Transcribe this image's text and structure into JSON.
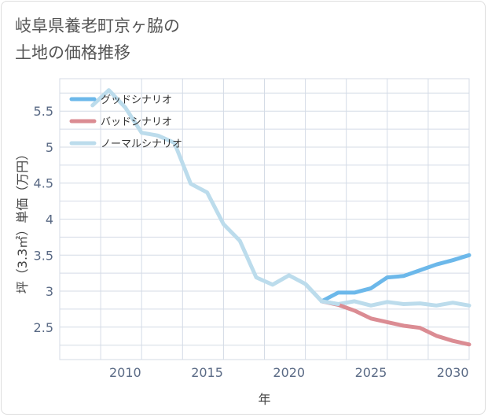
{
  "title": "岐阜県養老町京ヶ脇の\n土地の価格推移",
  "chart_data": {
    "type": "line",
    "xlabel": "年",
    "ylabel": "坪（3.3㎡）単価（万円）",
    "xlim": [
      2006,
      2031
    ],
    "ylim": [
      2.05,
      5.95
    ],
    "xticks": [
      2010,
      2015,
      2020,
      2025,
      2030
    ],
    "xtick_labels": [
      "2010",
      "2015",
      "2020",
      "2025",
      "2030"
    ],
    "yticks": [
      2.5,
      3,
      3.5,
      4,
      4.5,
      5,
      5.5
    ],
    "ytick_labels": [
      "2.5",
      "3",
      "3.5",
      "4",
      "4.5",
      "5",
      "5.5"
    ],
    "grid": true,
    "legend_position": "top-left",
    "series": [
      {
        "name": "グッドシナリオ",
        "color": "#6cb8ea",
        "x": [
          2022,
          2023,
          2024,
          2025,
          2026,
          2027,
          2028,
          2029,
          2030,
          2031
        ],
        "y": [
          2.86,
          2.98,
          2.98,
          3.04,
          3.19,
          3.21,
          3.29,
          3.37,
          3.43,
          3.5
        ]
      },
      {
        "name": "バッドシナリオ",
        "color": "#db8c93",
        "x": [
          2022,
          2023,
          2024,
          2025,
          2026,
          2027,
          2028,
          2029,
          2030,
          2031
        ],
        "y": [
          2.86,
          2.81,
          2.73,
          2.62,
          2.57,
          2.52,
          2.49,
          2.38,
          2.31,
          2.26
        ]
      },
      {
        "name": "ノーマルシナリオ",
        "color": "#bcdcec",
        "x": [
          2008,
          2009,
          2010,
          2011,
          2012,
          2013,
          2014,
          2015,
          2016,
          2017,
          2018,
          2019,
          2020,
          2021,
          2022,
          2023,
          2024,
          2025,
          2026,
          2027,
          2028,
          2029,
          2030,
          2031
        ],
        "y": [
          5.58,
          5.79,
          5.55,
          5.2,
          5.16,
          5.06,
          4.49,
          4.37,
          3.93,
          3.7,
          3.19,
          3.09,
          3.22,
          3.1,
          2.86,
          2.82,
          2.86,
          2.8,
          2.85,
          2.82,
          2.83,
          2.8,
          2.84,
          2.8
        ]
      }
    ]
  }
}
